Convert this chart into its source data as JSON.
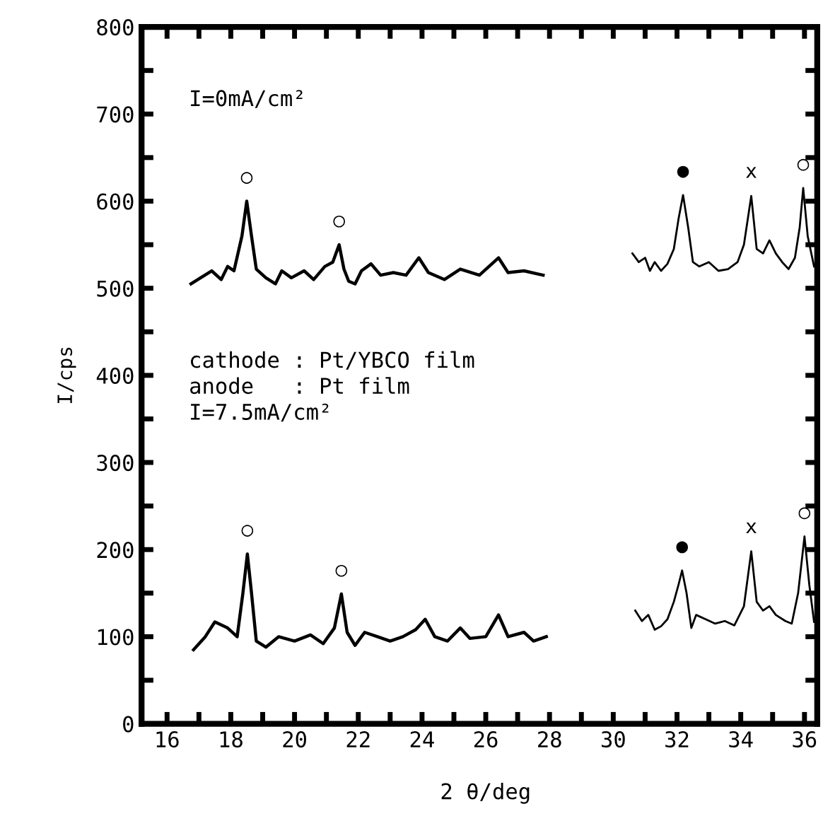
{
  "chart_data": {
    "type": "line",
    "xlabel": "2 θ/deg",
    "ylabel": "I/cps",
    "xlim": [
      15.2,
      36.4
    ],
    "ylim": [
      0,
      800
    ],
    "xticks": [
      16,
      {
        "value": 17,
        "label": null
      },
      18,
      {
        "value": 19,
        "label": null
      },
      20,
      {
        "value": 21,
        "label": null
      },
      22,
      {
        "value": 23,
        "label": null
      },
      24,
      {
        "value": 25,
        "label": null
      },
      26,
      {
        "value": 27,
        "label": null
      },
      28,
      {
        "value": 29,
        "label": null
      },
      30,
      {
        "value": 31,
        "label": null
      },
      32,
      {
        "value": 33,
        "label": null
      },
      34,
      {
        "value": 35,
        "label": null
      },
      36
    ],
    "yticks": [
      0,
      {
        "value": 50,
        "label": null
      },
      100,
      {
        "value": 150,
        "label": null
      },
      200,
      {
        "value": 250,
        "label": null
      },
      300,
      {
        "value": 350,
        "label": null
      },
      400,
      {
        "value": 450,
        "label": null
      },
      500,
      {
        "value": 550,
        "label": null
      },
      600,
      {
        "value": 650,
        "label": null
      },
      700,
      {
        "value": 750,
        "label": null
      },
      800
    ],
    "grid": false,
    "legend": false,
    "marker": "none",
    "line_style": "solid",
    "series": [
      {
        "color": "#000000",
        "x": [
          16.75,
          17.4,
          17.7,
          17.9,
          18.1,
          18.35,
          18.5,
          18.65,
          18.8,
          19.1,
          19.4,
          19.6,
          19.9,
          20.3,
          20.6,
          20.95,
          21.2,
          21.4,
          21.55,
          21.7,
          21.9,
          22.1,
          22.4,
          22.7,
          23.1,
          23.5,
          23.9,
          24.2,
          24.7,
          25.2,
          25.8,
          26.4,
          26.7,
          27.2,
          27.8
        ],
        "values": [
          505,
          520,
          510,
          525,
          520,
          560,
          600,
          560,
          522,
          512,
          505,
          520,
          512,
          520,
          510,
          525,
          530,
          550,
          522,
          508,
          505,
          520,
          528,
          515,
          518,
          515,
          535,
          518,
          510,
          522,
          515,
          535,
          518,
          520,
          515
        ]
      },
      {
        "color": "#000000",
        "x": [
          16.83,
          17.2,
          17.5,
          17.9,
          18.2,
          18.38,
          18.52,
          18.65,
          18.8,
          19.1,
          19.5,
          20.0,
          20.5,
          20.9,
          21.25,
          21.47,
          21.65,
          21.9,
          22.2,
          22.6,
          23.0,
          23.4,
          23.8,
          24.1,
          24.4,
          24.8,
          25.2,
          25.5,
          26.0,
          26.4,
          26.7,
          27.2,
          27.5,
          27.9
        ],
        "values": [
          85,
          100,
          117,
          110,
          100,
          150,
          195,
          150,
          95,
          88,
          100,
          95,
          102,
          92,
          110,
          149,
          105,
          90,
          105,
          100,
          95,
          100,
          108,
          120,
          100,
          95,
          110,
          98,
          100,
          125,
          100,
          105,
          95,
          100
        ]
      },
      {
        "color": "#000000",
        "x": [
          30.6,
          30.8,
          31.0,
          31.15,
          31.3,
          31.5,
          31.7,
          31.9,
          32.05,
          32.19,
          32.35,
          32.5,
          32.7,
          33.0,
          33.3,
          33.6,
          33.9,
          34.1,
          34.33,
          34.5,
          34.7,
          34.9,
          35.1,
          35.3,
          35.5,
          35.7,
          35.85,
          35.96,
          36.1,
          36.3
        ],
        "values": [
          540,
          530,
          535,
          520,
          530,
          520,
          528,
          545,
          580,
          607,
          570,
          530,
          525,
          530,
          520,
          522,
          530,
          550,
          606,
          545,
          540,
          555,
          540,
          530,
          522,
          535,
          570,
          615,
          560,
          525
        ]
      },
      {
        "color": "#000000",
        "x": [
          30.69,
          30.9,
          31.1,
          31.3,
          31.5,
          31.7,
          31.9,
          32.05,
          32.16,
          32.3,
          32.45,
          32.6,
          32.9,
          33.2,
          33.5,
          33.8,
          34.1,
          34.33,
          34.5,
          34.7,
          34.9,
          35.1,
          35.4,
          35.6,
          35.8,
          36.0,
          36.15,
          36.3
        ],
        "values": [
          130,
          118,
          125,
          108,
          112,
          120,
          140,
          160,
          176,
          150,
          110,
          125,
          120,
          115,
          118,
          113,
          135,
          198,
          140,
          130,
          135,
          125,
          118,
          115,
          150,
          215,
          160,
          117
        ]
      }
    ],
    "annotations": [
      "I=0mA/cm²",
      "cathode : Pt/YBCO film\nanode   : Pt film\nI=7.5mA/cm²",
      {
        "text": "○",
        "x": 18.5,
        "y": 600
      },
      {
        "text": "○",
        "x": 21.4,
        "y": 550
      },
      {
        "text": "○",
        "x": 18.52,
        "y": 195
      },
      {
        "text": "○",
        "x": 21.47,
        "y": 149
      },
      {
        "text": "●",
        "x": 32.19,
        "y": 607
      },
      {
        "text": "x",
        "x": 34.33,
        "y": 606
      },
      {
        "text": "○",
        "x": 35.96,
        "y": 615
      },
      {
        "text": "●",
        "x": 32.16,
        "y": 176
      },
      {
        "text": "x",
        "x": 34.33,
        "y": 198
      },
      {
        "text": "○",
        "x": 36.0,
        "y": 215
      }
    ]
  }
}
